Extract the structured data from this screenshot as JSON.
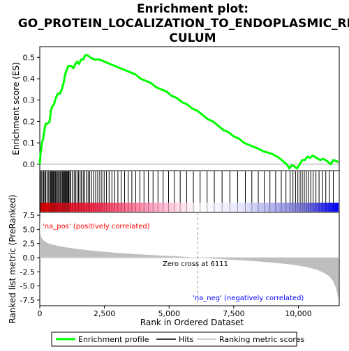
{
  "chart_data": {
    "type": "line",
    "title_lines": [
      "Enrichment plot:",
      "GO_PROTEIN_LOCALIZATION_TO_ENDOPLASMIC_RETI",
      "CULUM"
    ],
    "es_panel": {
      "ylabel": "Enrichment score (ES)",
      "ylim": [
        -0.03,
        0.55
      ],
      "yticks": [
        0.0,
        0.1,
        0.2,
        0.3,
        0.4,
        0.5
      ],
      "ytick_labels": [
        "0.0",
        "0.1",
        "0.2",
        "0.3",
        "0.4",
        "0.5"
      ],
      "color": "#00ff00",
      "points": [
        [
          0,
          0.0
        ],
        [
          30,
          0.05
        ],
        [
          80,
          0.1
        ],
        [
          130,
          0.12
        ],
        [
          180,
          0.16
        ],
        [
          230,
          0.19
        ],
        [
          300,
          0.19
        ],
        [
          380,
          0.2
        ],
        [
          430,
          0.25
        ],
        [
          480,
          0.27
        ],
        [
          550,
          0.28
        ],
        [
          620,
          0.31
        ],
        [
          700,
          0.33
        ],
        [
          780,
          0.33
        ],
        [
          850,
          0.35
        ],
        [
          920,
          0.38
        ],
        [
          980,
          0.42
        ],
        [
          1040,
          0.44
        ],
        [
          1100,
          0.46
        ],
        [
          1200,
          0.46
        ],
        [
          1300,
          0.45
        ],
        [
          1380,
          0.47
        ],
        [
          1450,
          0.48
        ],
        [
          1520,
          0.47
        ],
        [
          1600,
          0.49
        ],
        [
          1680,
          0.49
        ],
        [
          1760,
          0.51
        ],
        [
          1840,
          0.51
        ],
        [
          1950,
          0.5
        ],
        [
          2100,
          0.49
        ],
        [
          2300,
          0.49
        ],
        [
          2500,
          0.48
        ],
        [
          2700,
          0.47
        ],
        [
          2900,
          0.46
        ],
        [
          3100,
          0.45
        ],
        [
          3300,
          0.44
        ],
        [
          3500,
          0.43
        ],
        [
          3700,
          0.42
        ],
        [
          3900,
          0.4
        ],
        [
          4100,
          0.39
        ],
        [
          4300,
          0.38
        ],
        [
          4500,
          0.36
        ],
        [
          4700,
          0.35
        ],
        [
          4900,
          0.34
        ],
        [
          5100,
          0.32
        ],
        [
          5300,
          0.31
        ],
        [
          5500,
          0.29
        ],
        [
          5700,
          0.28
        ],
        [
          5900,
          0.26
        ],
        [
          6100,
          0.25
        ],
        [
          6300,
          0.23
        ],
        [
          6500,
          0.21
        ],
        [
          6700,
          0.2
        ],
        [
          6900,
          0.18
        ],
        [
          7100,
          0.16
        ],
        [
          7300,
          0.15
        ],
        [
          7500,
          0.13
        ],
        [
          7700,
          0.12
        ],
        [
          7900,
          0.1
        ],
        [
          8100,
          0.09
        ],
        [
          8300,
          0.08
        ],
        [
          8500,
          0.07
        ],
        [
          8650,
          0.06
        ],
        [
          8800,
          0.055
        ],
        [
          8950,
          0.05
        ],
        [
          9100,
          0.04
        ],
        [
          9250,
          0.03
        ],
        [
          9400,
          0.015
        ],
        [
          9550,
          0.0
        ],
        [
          9650,
          -0.02
        ],
        [
          9750,
          -0.005
        ],
        [
          9850,
          -0.01
        ],
        [
          9950,
          -0.02
        ],
        [
          10050,
          0.0
        ],
        [
          10150,
          0.02
        ],
        [
          10250,
          0.02
        ],
        [
          10350,
          0.035
        ],
        [
          10450,
          0.03
        ],
        [
          10550,
          0.04
        ],
        [
          10650,
          0.035
        ],
        [
          10750,
          0.025
        ],
        [
          10850,
          0.02
        ],
        [
          10950,
          0.025
        ],
        [
          11050,
          0.02
        ],
        [
          11150,
          0.01
        ],
        [
          11250,
          0.0
        ],
        [
          11350,
          0.02
        ],
        [
          11450,
          0.015
        ],
        [
          11550,
          0.01
        ]
      ]
    },
    "hits_panel": {
      "hit_ranks": [
        20,
        60,
        110,
        150,
        190,
        230,
        280,
        330,
        380,
        420,
        450,
        480,
        510,
        540,
        570,
        610,
        640,
        680,
        720,
        760,
        800,
        840,
        880,
        910,
        940,
        970,
        1000,
        1030,
        1060,
        1090,
        1120,
        1160,
        1200,
        1260,
        1330,
        1390,
        1440,
        1500,
        1560,
        1610,
        1680,
        1740,
        1800,
        1870,
        1930,
        2000,
        2080,
        2160,
        2240,
        2320,
        2400,
        2490,
        2580,
        2680,
        2790,
        2900,
        3020,
        3150,
        3280,
        3420,
        3560,
        3710,
        3870,
        4030,
        4200,
        4380,
        4570,
        4770,
        4980,
        5200,
        5430,
        5680,
        5940,
        6200,
        6470,
        6750,
        7050,
        7350,
        7650,
        7950,
        8200,
        8450,
        8680,
        8900,
        9120,
        9340,
        9520,
        9680,
        9790,
        9890,
        9980,
        10070,
        10150,
        10230,
        10310,
        10390,
        10480,
        10570,
        10680,
        10800,
        10930,
        11060,
        11200,
        11350
      ]
    },
    "metric_panel": {
      "ylabel": "Ranked list metric (PreRanked)",
      "ylim": [
        -8.5,
        8.0
      ],
      "yticks": [
        -7.5,
        -5.0,
        -2.5,
        0.0,
        2.5,
        5.0,
        7.5
      ],
      "ytick_labels": [
        "-7.5",
        "-5.0",
        "-2.5",
        "0.0",
        "2.5",
        "5.0",
        "7.5"
      ],
      "fill_color": "#bebebe",
      "points": [
        [
          0,
          7.5
        ],
        [
          15,
          4.5
        ],
        [
          60,
          3.6
        ],
        [
          150,
          3.0
        ],
        [
          300,
          2.6
        ],
        [
          500,
          2.3
        ],
        [
          800,
          2.0
        ],
        [
          1200,
          1.7
        ],
        [
          1700,
          1.4
        ],
        [
          2300,
          1.1
        ],
        [
          3000,
          0.85
        ],
        [
          3800,
          0.6
        ],
        [
          4600,
          0.4
        ],
        [
          5400,
          0.2
        ],
        [
          6111,
          0.0
        ],
        [
          6800,
          -0.2
        ],
        [
          7600,
          -0.4
        ],
        [
          8400,
          -0.65
        ],
        [
          9200,
          -0.95
        ],
        [
          9800,
          -1.25
        ],
        [
          10300,
          -1.65
        ],
        [
          10700,
          -2.1
        ],
        [
          11000,
          -2.7
        ],
        [
          11200,
          -3.3
        ],
        [
          11350,
          -4.2
        ],
        [
          11450,
          -5.3
        ],
        [
          11520,
          -6.6
        ],
        [
          11570,
          -7.6
        ]
      ],
      "zero_cross_rank": 6111,
      "zero_cross_label": "Zero cross at 6111",
      "pos_label": "'na_pos' (positively correlated)",
      "neg_label": "'na_neg' (negatively correlated)",
      "pos_color": "#ff0000",
      "neg_color": "#0000ff"
    },
    "x_axis": {
      "xlabel": "Rank in Ordered Dataset",
      "xlim": [
        0,
        11580
      ],
      "xticks": [
        0,
        2500,
        5000,
        7500,
        10000
      ],
      "xtick_labels": [
        "0",
        "2,500",
        "5,000",
        "7,500",
        "10,000"
      ]
    },
    "legend": {
      "placement": "bottom",
      "items": [
        {
          "label": "Enrichment profile",
          "kind": "line",
          "color": "#00ff00"
        },
        {
          "label": "Hits",
          "kind": "line",
          "color": "#000000"
        },
        {
          "label": "Ranking metric scores",
          "kind": "line",
          "color": "#bebebe"
        }
      ]
    }
  }
}
